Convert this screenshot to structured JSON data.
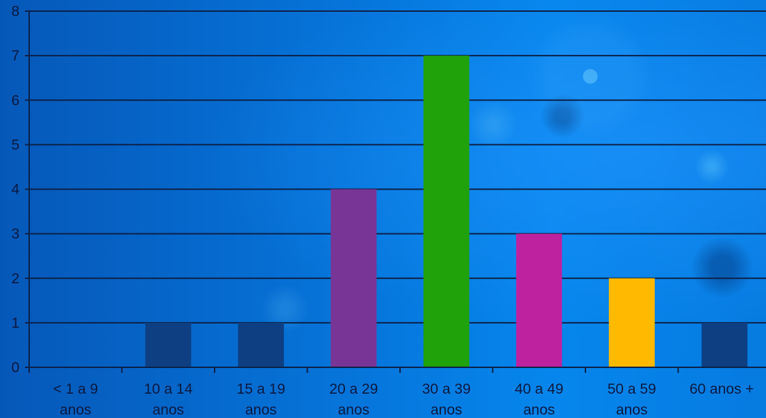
{
  "chart_data": {
    "type": "bar",
    "title": "",
    "xlabel": "",
    "ylabel": "",
    "categories": [
      "< 1 a 9 anos",
      "10 a 14 anos",
      "15 a 19 anos",
      "20 a 29 anos",
      "30 a 39 anos",
      "40 a 49 anos",
      "50 a 59 anos",
      "60 anos +"
    ],
    "category_label_lines": [
      [
        "< 1 a 9",
        "anos"
      ],
      [
        "10 a 14",
        "anos"
      ],
      [
        "15 a 19",
        "anos"
      ],
      [
        "20 a 29",
        "anos"
      ],
      [
        "30 a 39",
        "anos"
      ],
      [
        "40 a 49",
        "anos"
      ],
      [
        "50 a 59",
        "anos"
      ],
      [
        "60 anos +",
        ""
      ]
    ],
    "values": [
      0,
      1,
      1,
      4,
      7,
      3,
      2,
      1
    ],
    "bar_colors": [
      "#0d3f82",
      "#0d3f82",
      "#0d3f82",
      "#783596",
      "#20a20a",
      "#be229f",
      "#ffba00",
      "#0d3f82"
    ],
    "ylim": [
      0,
      8
    ],
    "yticks": [
      "0",
      "1",
      "2",
      "3",
      "4",
      "5",
      "6",
      "7",
      "8"
    ],
    "grid": true,
    "legend": "none"
  }
}
